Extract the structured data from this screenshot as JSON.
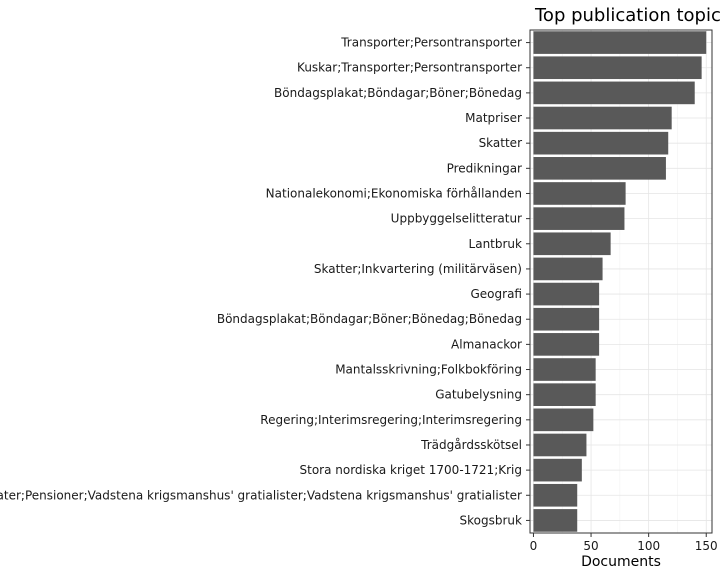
{
  "chart_data": {
    "type": "bar",
    "orientation": "horizontal",
    "title": "Top publication topics",
    "xlabel": "Documents",
    "ylabel": "",
    "xlim": [
      -3,
      155
    ],
    "xticks": [
      0,
      50,
      100,
      150
    ],
    "grid": true,
    "bar_color": "#595959",
    "categories": [
      "Transporter;Persontransporter",
      "Kuskar;Transporter;Persontransporter",
      "Böndagsplakat;Böndagar;Böner;Bönedag",
      "Matpriser",
      "Skatter",
      "Predikningar",
      "Nationalekonomi;Ekonomiska förhållanden",
      "Uppbyggelselitteratur",
      "Lantbruk",
      "Skatter;Inkvartering (militärväsen)",
      "Geografi",
      "Böndagsplakat;Böndagar;Böner;Bönedag;Bönedag",
      "Almanackor",
      "Mantalsskrivning;Folkbokföring",
      "Gatubelysning",
      "Regering;Interimsregering;Interimsregering",
      "Trädgårdsskötsel",
      "Stora nordiska kriget 1700-1721;Krig",
      "Soldater;Pensioner;Vadstena krigsmanshus' gratialister;Vadstena krigsmanshus' gratialister",
      "Skogsbruk"
    ],
    "values": [
      150,
      146,
      140,
      120,
      117,
      115,
      80,
      79,
      67,
      60,
      57,
      57,
      57,
      54,
      54,
      52,
      46,
      42,
      38,
      38
    ]
  }
}
